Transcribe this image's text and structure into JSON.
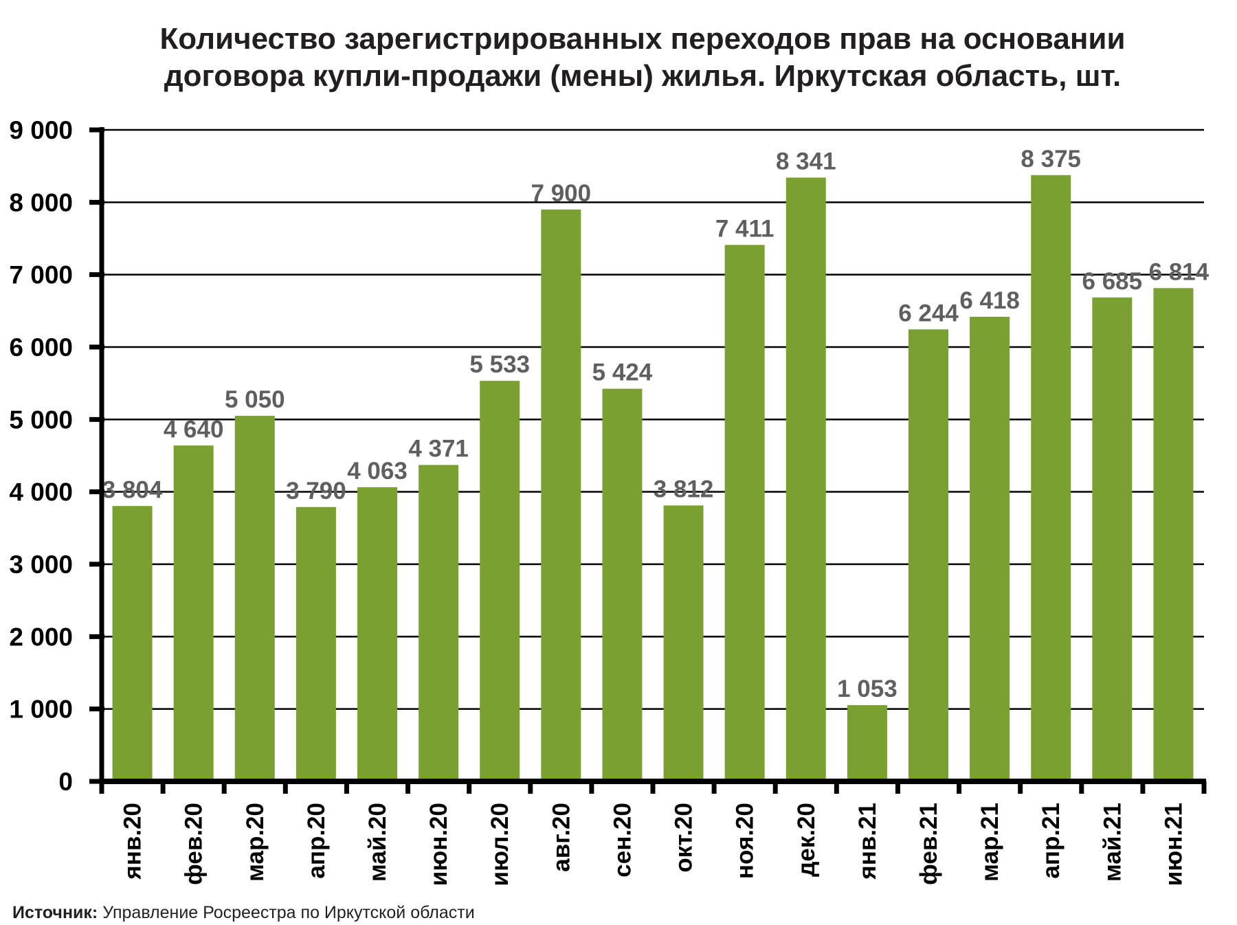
{
  "chart_data": {
    "type": "bar",
    "title": [
      "Количество зарегистрированных переходов прав на основании",
      "договора купли-продажи (мены) жилья. Иркутская область, шт."
    ],
    "categories": [
      "янв.20",
      "фев.20",
      "мар.20",
      "апр.20",
      "май.20",
      "июн.20",
      "июл.20",
      "авг.20",
      "сен.20",
      "окт.20",
      "ноя.20",
      "дек.20",
      "янв.21",
      "фев.21",
      "мар.21",
      "апр.21",
      "май.21",
      "июн.21"
    ],
    "values": [
      3804,
      4640,
      5050,
      3790,
      4063,
      4371,
      5533,
      7900,
      5424,
      3812,
      7411,
      8341,
      1053,
      6244,
      6418,
      8375,
      6685,
      6814
    ],
    "value_labels": [
      "3 804",
      "4 640",
      "5 050",
      "3 790",
      "4 063",
      "4 371",
      "5 533",
      "7 900",
      "5 424",
      "3 812",
      "7 411",
      "8 341",
      "1 053",
      "6 244",
      "6 418",
      "8 375",
      "6 685",
      "6 814"
    ],
    "yticks": [
      0,
      1000,
      2000,
      3000,
      4000,
      5000,
      6000,
      7000,
      8000,
      9000
    ],
    "ytick_labels": [
      "0",
      "1 000",
      "2 000",
      "3 000",
      "4 000",
      "5 000",
      "6 000",
      "7 000",
      "8 000",
      "9 000"
    ],
    "ylim": [
      0,
      9000
    ],
    "xlabel": "",
    "ylabel": "",
    "grid": true,
    "bar_color": "#7aa030",
    "label_color": "#5f5f5f"
  },
  "source": {
    "label": "Источник:",
    "text": " Управление Росреестра по Иркутской области"
  }
}
